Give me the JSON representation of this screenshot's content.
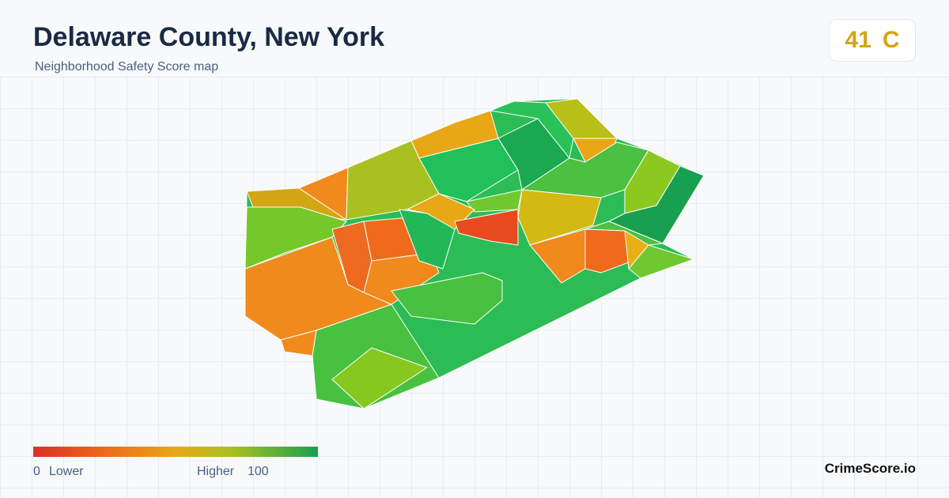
{
  "header": {
    "title": "Delaware County, New York",
    "subtitle": "Neighborhood Safety Score map"
  },
  "score": {
    "value": 41,
    "grade": "C"
  },
  "legend": {
    "min": 0,
    "min_label": "Lower",
    "max_label": "Higher",
    "max": 100
  },
  "brand": "CrimeScore.io"
}
